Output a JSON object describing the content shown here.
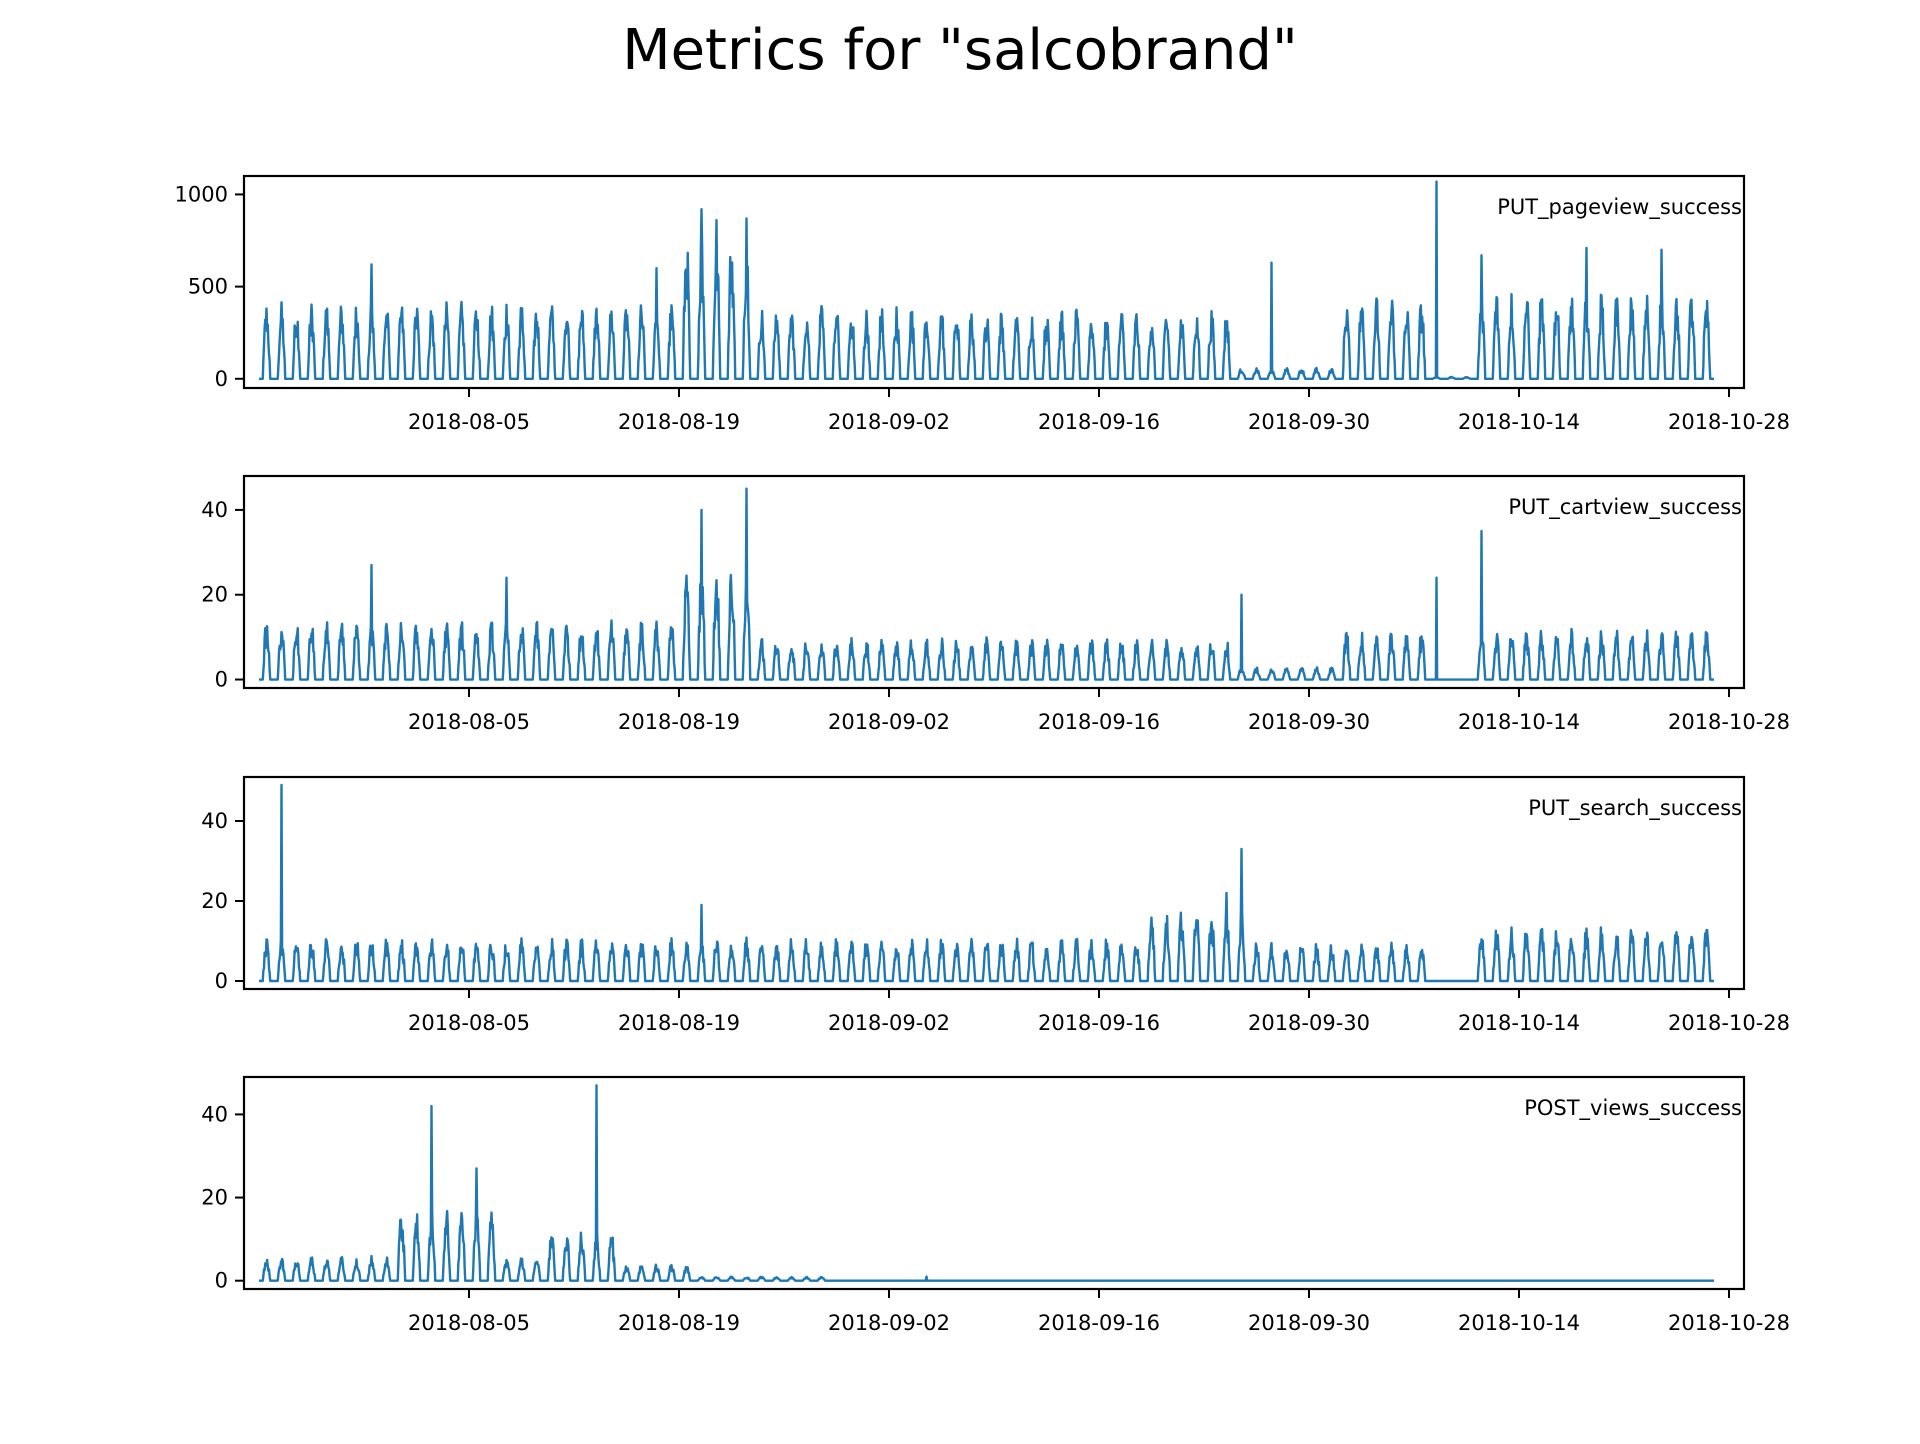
{
  "figure": {
    "title": "Metrics for \"salcobrand\"",
    "line_color": "#1f77b4",
    "axis_color": "#000000",
    "background": "#ffffff"
  },
  "chart_data": [
    {
      "type": "line",
      "series": [
        {
          "name": "PUT_pageview_success"
        }
      ],
      "x_range": [
        "2018-07-22",
        "2018-10-27"
      ],
      "xlim": [
        "2018-07-21",
        "2018-10-29"
      ],
      "x_ticks": [
        "2018-08-05",
        "2018-08-19",
        "2018-09-02",
        "2018-09-16",
        "2018-09-30",
        "2018-10-14",
        "2018-10-28"
      ],
      "ylim": [
        -50,
        1100
      ],
      "y_ticks": [
        0,
        500,
        1000
      ],
      "legend": "top-right",
      "grid": false,
      "pattern": [
        {
          "from": "2018-07-22",
          "to": "2018-08-19",
          "low": 0,
          "high": 420
        },
        {
          "from": "2018-08-19",
          "to": "2018-08-24",
          "low": 0,
          "high": 800
        },
        {
          "from": "2018-08-24",
          "to": "2018-09-07",
          "low": 0,
          "high": 400
        },
        {
          "from": "2018-09-07",
          "to": "2018-09-25",
          "low": 0,
          "high": 380
        },
        {
          "from": "2018-09-25",
          "to": "2018-10-02",
          "low": 0,
          "high": 60
        },
        {
          "from": "2018-10-02",
          "to": "2018-10-08",
          "low": 0,
          "high": 450
        },
        {
          "from": "2018-10-08",
          "to": "2018-10-11",
          "low": 0,
          "high": 10
        },
        {
          "from": "2018-10-11",
          "to": "2018-10-27",
          "low": 0,
          "high": 480
        }
      ],
      "peaks": [
        {
          "x": "2018-07-29",
          "y": 620
        },
        {
          "x": "2018-08-17",
          "y": 600
        },
        {
          "x": "2018-08-20",
          "y": 920
        },
        {
          "x": "2018-08-21",
          "y": 860
        },
        {
          "x": "2018-08-23",
          "y": 870
        },
        {
          "x": "2018-09-27",
          "y": 630
        },
        {
          "x": "2018-10-08",
          "y": 1070
        },
        {
          "x": "2018-10-11",
          "y": 670
        },
        {
          "x": "2018-10-18",
          "y": 710
        },
        {
          "x": "2018-10-23",
          "y": 700
        }
      ]
    },
    {
      "type": "line",
      "series": [
        {
          "name": "PUT_cartview_success"
        }
      ],
      "x_range": [
        "2018-07-22",
        "2018-10-27"
      ],
      "xlim": [
        "2018-07-21",
        "2018-10-29"
      ],
      "x_ticks": [
        "2018-08-05",
        "2018-08-19",
        "2018-09-02",
        "2018-09-16",
        "2018-09-30",
        "2018-10-14",
        "2018-10-28"
      ],
      "ylim": [
        -2,
        48
      ],
      "y_ticks": [
        0,
        20,
        40
      ],
      "legend": "top-right",
      "grid": false,
      "pattern": [
        {
          "from": "2018-07-22",
          "to": "2018-08-19",
          "low": 0,
          "high": 14
        },
        {
          "from": "2018-08-19",
          "to": "2018-08-24",
          "low": 0,
          "high": 28
        },
        {
          "from": "2018-08-24",
          "to": "2018-09-25",
          "low": 0,
          "high": 10
        },
        {
          "from": "2018-09-25",
          "to": "2018-10-02",
          "low": 0,
          "high": 3
        },
        {
          "from": "2018-10-02",
          "to": "2018-10-08",
          "low": 0,
          "high": 12
        },
        {
          "from": "2018-10-08",
          "to": "2018-10-11",
          "low": 0,
          "high": 0
        },
        {
          "from": "2018-10-11",
          "to": "2018-10-27",
          "low": 0,
          "high": 12
        }
      ],
      "peaks": [
        {
          "x": "2018-07-29",
          "y": 27
        },
        {
          "x": "2018-08-07",
          "y": 24
        },
        {
          "x": "2018-08-20",
          "y": 40
        },
        {
          "x": "2018-08-23",
          "y": 45
        },
        {
          "x": "2018-09-25",
          "y": 20
        },
        {
          "x": "2018-10-08",
          "y": 24
        },
        {
          "x": "2018-10-11",
          "y": 35
        }
      ]
    },
    {
      "type": "line",
      "series": [
        {
          "name": "PUT_search_success"
        }
      ],
      "x_range": [
        "2018-07-22",
        "2018-10-27"
      ],
      "xlim": [
        "2018-07-21",
        "2018-10-29"
      ],
      "x_ticks": [
        "2018-08-05",
        "2018-08-19",
        "2018-09-02",
        "2018-09-16",
        "2018-09-30",
        "2018-10-14",
        "2018-10-28"
      ],
      "ylim": [
        -2,
        51
      ],
      "y_ticks": [
        0,
        20,
        40
      ],
      "legend": "top-right",
      "grid": false,
      "pattern": [
        {
          "from": "2018-07-22",
          "to": "2018-09-19",
          "low": 0,
          "high": 11
        },
        {
          "from": "2018-09-19",
          "to": "2018-09-26",
          "low": 0,
          "high": 18
        },
        {
          "from": "2018-09-26",
          "to": "2018-10-08",
          "low": 0,
          "high": 10
        },
        {
          "from": "2018-10-08",
          "to": "2018-10-11",
          "low": 0,
          "high": 0
        },
        {
          "from": "2018-10-11",
          "to": "2018-10-27",
          "low": 0,
          "high": 14
        }
      ],
      "peaks": [
        {
          "x": "2018-07-23",
          "y": 49
        },
        {
          "x": "2018-08-20",
          "y": 19
        },
        {
          "x": "2018-09-24",
          "y": 22
        },
        {
          "x": "2018-09-25",
          "y": 33
        }
      ]
    },
    {
      "type": "line",
      "series": [
        {
          "name": "POST_views_success"
        }
      ],
      "x_range": [
        "2018-07-22",
        "2018-10-27"
      ],
      "xlim": [
        "2018-07-21",
        "2018-10-29"
      ],
      "x_ticks": [
        "2018-08-05",
        "2018-08-19",
        "2018-09-02",
        "2018-09-16",
        "2018-09-30",
        "2018-10-14",
        "2018-10-28"
      ],
      "ylim": [
        -2,
        49
      ],
      "y_ticks": [
        0,
        20,
        40
      ],
      "legend": "top-right",
      "grid": false,
      "pattern": [
        {
          "from": "2018-07-22",
          "to": "2018-07-31",
          "low": 0,
          "high": 6
        },
        {
          "from": "2018-07-31",
          "to": "2018-08-07",
          "low": 0,
          "high": 18
        },
        {
          "from": "2018-08-07",
          "to": "2018-08-10",
          "low": 0,
          "high": 6
        },
        {
          "from": "2018-08-10",
          "to": "2018-08-15",
          "low": 0,
          "high": 12
        },
        {
          "from": "2018-08-15",
          "to": "2018-08-20",
          "low": 0,
          "high": 4
        },
        {
          "from": "2018-08-20",
          "to": "2018-08-29",
          "low": 0,
          "high": 1
        },
        {
          "from": "2018-08-29",
          "to": "2018-10-27",
          "low": 0,
          "high": 0
        }
      ],
      "peaks": [
        {
          "x": "2018-08-02",
          "y": 42
        },
        {
          "x": "2018-08-05",
          "y": 27
        },
        {
          "x": "2018-08-13",
          "y": 47
        },
        {
          "x": "2018-09-04",
          "y": 1
        }
      ]
    }
  ]
}
